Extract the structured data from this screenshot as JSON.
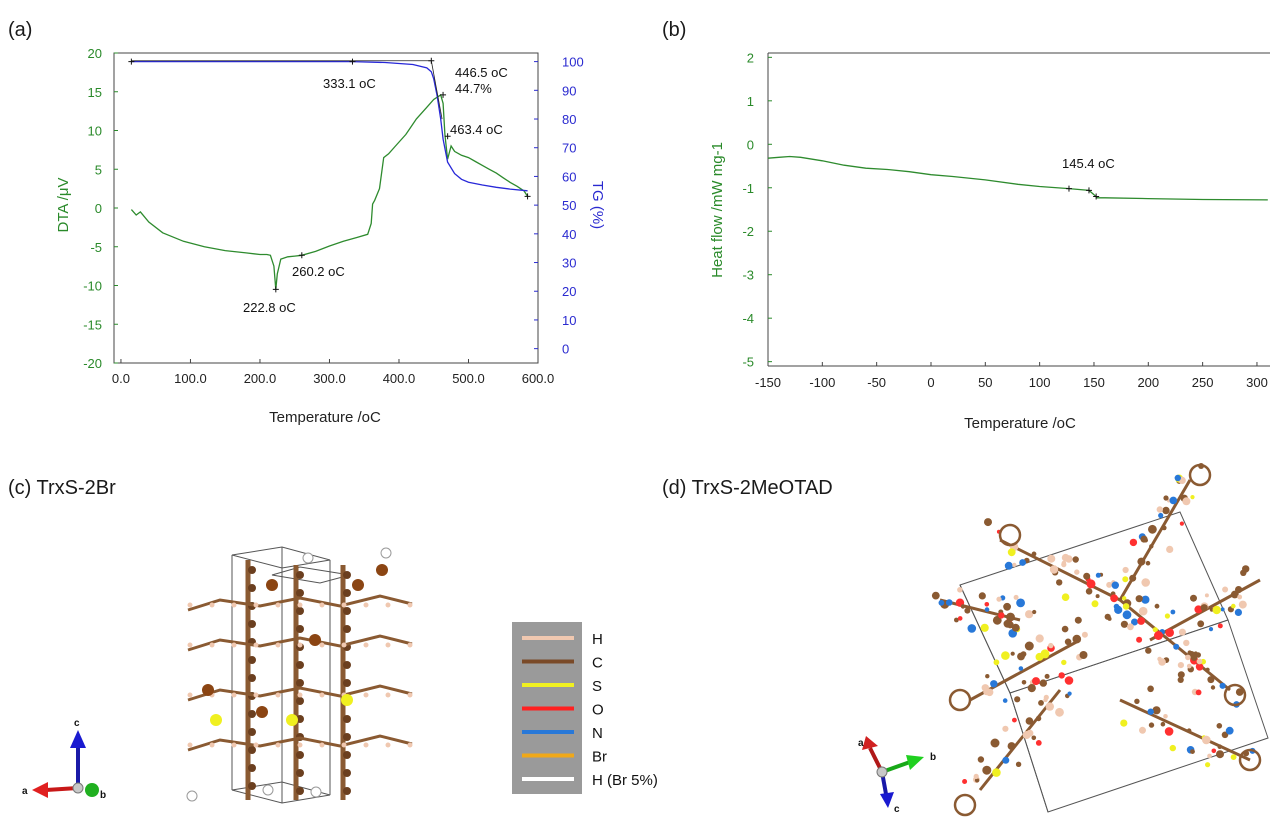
{
  "panels": {
    "a": {
      "label": "(a)"
    },
    "b": {
      "label": "(b)"
    },
    "c": {
      "label": "(c) TrxS-2Br"
    },
    "d": {
      "label": "(d) TrxS-2MeOTAD"
    }
  },
  "chart_data": [
    {
      "type": "line",
      "panel": "a",
      "xlabel": "Temperature /oC",
      "ylabel": "DTA /μV",
      "y2label": "TG (%)",
      "xlim": [
        -10,
        600
      ],
      "ylim": [
        -20,
        20
      ],
      "y2lim": [
        -5,
        103
      ],
      "xticks": [
        "0.0",
        "100.0",
        "200.0",
        "300.0",
        "400.0",
        "500.0",
        "600.0"
      ],
      "yticks": [
        "20",
        "15",
        "10",
        "5",
        "0",
        "-5",
        "-10",
        "-15",
        "-20"
      ],
      "y2ticks": [
        "100",
        "90",
        "80",
        "70",
        "60",
        "50",
        "40",
        "30",
        "20",
        "10",
        "0"
      ],
      "series": [
        {
          "axis": "DTA",
          "color": "#2e8b2e",
          "x": [
            15,
            22,
            28,
            40,
            60,
            90,
            120,
            150,
            180,
            200,
            210,
            215,
            220,
            222.8,
            225,
            230,
            240,
            250,
            260.2,
            280,
            300,
            320,
            340,
            355,
            360,
            362,
            365,
            372,
            378,
            385,
            395,
            410,
            425,
            440,
            450,
            460,
            463.4,
            466,
            470,
            475,
            480,
            490,
            500,
            510,
            520,
            530,
            540,
            550,
            560,
            570,
            580,
            585
          ],
          "y": [
            -0.2,
            -0.9,
            -0.5,
            -1.8,
            -3.2,
            -4.3,
            -5.0,
            -5.5,
            -5.8,
            -6.0,
            -6.0,
            -6.1,
            -7.5,
            -10.5,
            -8.5,
            -6.6,
            -6.3,
            -6.2,
            -6.1,
            -5.6,
            -4.9,
            -4.3,
            -3.8,
            -3.4,
            -2.0,
            0.5,
            1.0,
            2.5,
            6.5,
            7.0,
            8.0,
            9.5,
            11.5,
            13.0,
            14.0,
            14.6,
            13.5,
            9.5,
            6.3,
            8.0,
            7.3,
            6.8,
            6.5,
            6.0,
            5.5,
            5.0,
            4.5,
            3.9,
            3.3,
            2.8,
            2.2,
            1.5
          ]
        },
        {
          "axis": "TG",
          "color": "#2828d8",
          "x": [
            15,
            100,
            200,
            280,
            333.1,
            380,
            420,
            440,
            446.5,
            450,
            455,
            460,
            463.4,
            470,
            480,
            490,
            500,
            520,
            540,
            560,
            585
          ],
          "y": [
            100,
            100,
            100,
            100,
            100,
            99.7,
            99.0,
            97.8,
            96.5,
            94.0,
            88.0,
            80.0,
            73.0,
            65.0,
            61.0,
            59.0,
            58.0,
            57.0,
            56.2,
            55.6,
            55.0
          ]
        }
      ],
      "annotations": [
        {
          "text": "333.1 oC"
        },
        {
          "text": "446.5 oC"
        },
        {
          "text": "44.7%"
        },
        {
          "text": "463.4 oC"
        },
        {
          "text": "260.2 oC"
        },
        {
          "text": "222.8 oC"
        }
      ]
    },
    {
      "type": "line",
      "panel": "b",
      "xlabel": "Temperature /oC",
      "ylabel": "Heat flow /mW mg-1",
      "xlim": [
        -150,
        312
      ],
      "ylim": [
        -5.1,
        2.1
      ],
      "xticks": [
        "-150",
        "-100",
        "-50",
        "0",
        "50",
        "100",
        "150",
        "200",
        "250",
        "300"
      ],
      "yticks": [
        "2",
        "1",
        "0",
        "-1",
        "-2",
        "-3",
        "-4",
        "-5"
      ],
      "series": [
        {
          "color": "#2e8b2e",
          "x": [
            -150,
            -140,
            -130,
            -120,
            -100,
            -80,
            -60,
            -40,
            -20,
            0,
            20,
            50,
            80,
            100,
            127,
            145.4,
            150,
            153,
            160,
            200,
            250,
            310
          ],
          "y": [
            -0.32,
            -0.3,
            -0.28,
            -0.3,
            -0.38,
            -0.48,
            -0.55,
            -0.58,
            -0.63,
            -0.7,
            -0.74,
            -0.82,
            -0.92,
            -0.97,
            -1.02,
            -1.06,
            -1.16,
            -1.23,
            -1.23,
            -1.25,
            -1.27,
            -1.28
          ]
        }
      ],
      "annotations": [
        {
          "text": "145.4 oC"
        }
      ]
    }
  ],
  "crystal_c": {
    "axes": {
      "a": "a",
      "b": "b",
      "c": "c"
    }
  },
  "crystal_d": {
    "axes": {
      "a": "a",
      "b": "b",
      "c": "c"
    }
  },
  "legend": {
    "items": [
      {
        "label": "H",
        "color": "#f0c8b0"
      },
      {
        "label": "C",
        "color": "#7a4a28"
      },
      {
        "label": "S",
        "color": "#f0f020"
      },
      {
        "label": "O",
        "color": "#ff2020"
      },
      {
        "label": "N",
        "color": "#2878d8"
      },
      {
        "label": "Br",
        "color": "#f0a818"
      },
      {
        "label": "H (Br 5%)",
        "color": "#ffffff"
      }
    ]
  }
}
